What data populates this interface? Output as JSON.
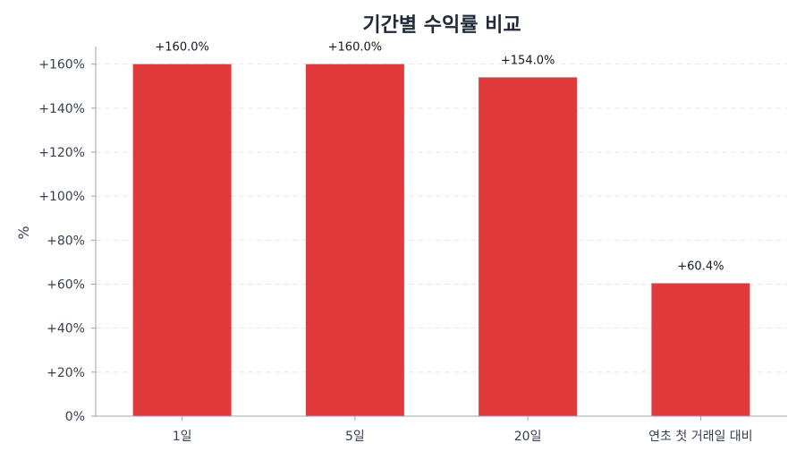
{
  "chart_data": {
    "type": "bar",
    "title": "기간별 수익률 비교",
    "ylabel": "%",
    "xlabel": "",
    "categories": [
      "1일",
      "5일",
      "20일",
      "연초 첫 거래일 대비"
    ],
    "values": [
      160.0,
      160.0,
      154.0,
      60.4
    ],
    "data_labels": [
      "+160.0%",
      "+160.0%",
      "+154.0%",
      "+60.4%"
    ],
    "ylim": [
      0,
      168
    ],
    "yticks": [
      0,
      20,
      40,
      60,
      80,
      100,
      120,
      140,
      160
    ],
    "ytick_labels": [
      "0%",
      "+20%",
      "+40%",
      "+60%",
      "+80%",
      "+100%",
      "+120%",
      "+140%",
      "+160%"
    ],
    "grid": true,
    "bar_color": "#e03a3c",
    "grid_color": "#e5e7eb",
    "axis_color": "#9ca3af"
  }
}
